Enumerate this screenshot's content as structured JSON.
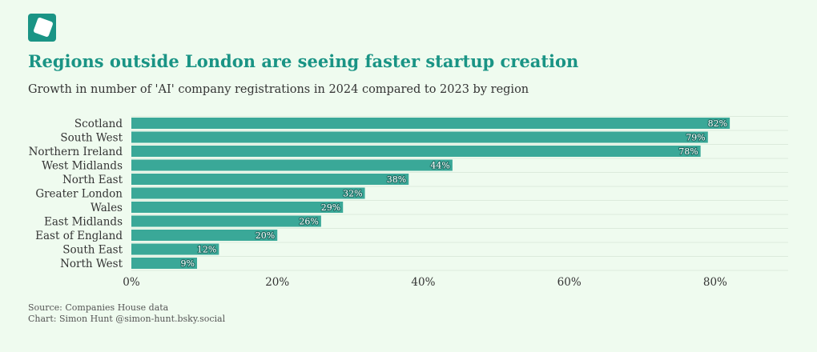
{
  "title": "Regions outside London are seeing faster startup creation",
  "subtitle": "Growth in number of 'AI' company registrations in 2024 compared to 2023 by region",
  "footer": {
    "source": "Source: Companies House data",
    "credit": "Chart: Simon Hunt @simon-hunt.bsky.social"
  },
  "colors": {
    "bar": "#3aa898",
    "title": "#1a9485",
    "background": "#effbef"
  },
  "icons": {
    "logo": "logo-icon"
  },
  "chart_data": {
    "type": "bar",
    "orientation": "horizontal",
    "title": "",
    "xlabel": "",
    "ylabel": "",
    "categories": [
      "Scotland",
      "South West",
      "Northern Ireland",
      "West Midlands",
      "North East",
      "Greater London",
      "Wales",
      "East Midlands",
      "East of England",
      "South East",
      "North West"
    ],
    "values": [
      82,
      79,
      78,
      44,
      38,
      32,
      29,
      26,
      20,
      12,
      9
    ],
    "value_labels": [
      "82%",
      "79%",
      "78%",
      "44%",
      "38%",
      "32%",
      "29%",
      "26%",
      "20%",
      "12%",
      "9%"
    ],
    "xlim": [
      0,
      90
    ],
    "xticks": [
      0,
      20,
      40,
      60,
      80
    ],
    "xtick_labels": [
      "0%",
      "20%",
      "40%",
      "60%",
      "80%"
    ],
    "grid": "horizontal"
  }
}
